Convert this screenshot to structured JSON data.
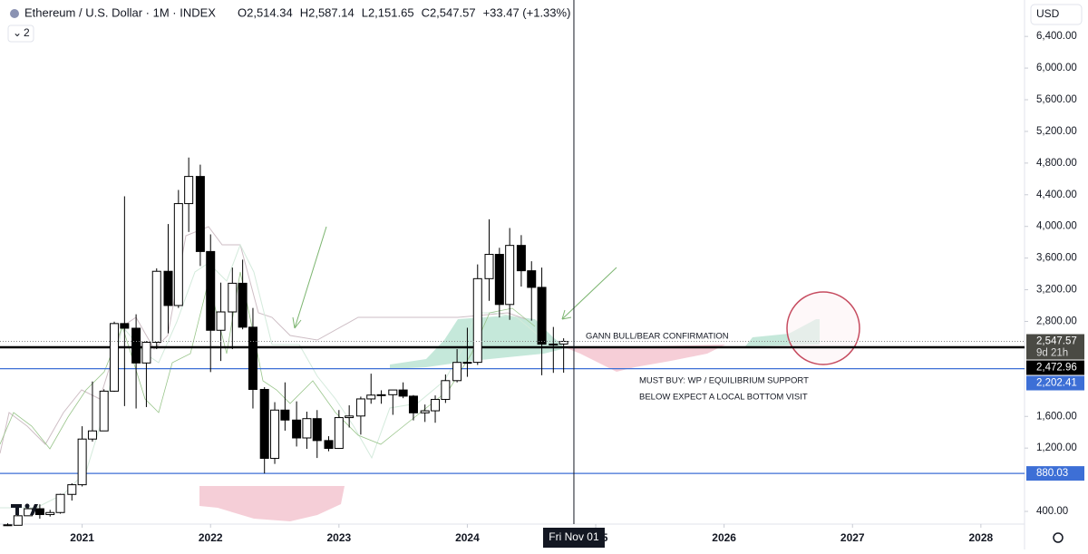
{
  "chart_data": {
    "type": "candlestick",
    "title": "Ethereum / U.S. Dollar · 1M · INDEX",
    "ohlc_labels": [
      "O2,514.34",
      "H2,587.14",
      "L2,151.65",
      "C2,547.57",
      "+33.47 (+1.33%)"
    ],
    "indicator_count": "2",
    "currency": "USD",
    "x": [
      2020.42,
      2020.5,
      2020.58,
      2020.67,
      2020.75,
      2020.83,
      2020.92,
      2021,
      2021.08,
      2021.17,
      2021.25,
      2021.33,
      2021.42,
      2021.5,
      2021.58,
      2021.67,
      2021.75,
      2021.83,
      2021.92,
      2022,
      2022.08,
      2022.17,
      2022.25,
      2022.33,
      2022.42,
      2022.5,
      2022.58,
      2022.67,
      2022.75,
      2022.83,
      2022.92,
      2023,
      2023.08,
      2023.17,
      2023.25,
      2023.33,
      2023.42,
      2023.5,
      2023.58,
      2023.67,
      2023.75,
      2023.83,
      2023.92,
      2024,
      2024.08,
      2024.17,
      2024.25,
      2024.33,
      2024.42,
      2024.5,
      2024.58,
      2024.67,
      2024.75
    ],
    "open": [
      231,
      225,
      345,
      434,
      360,
      386,
      615,
      737,
      1314,
      1417,
      1919,
      2773,
      2714,
      2275,
      2536,
      3433,
      3001,
      4288,
      4631,
      3683,
      2688,
      2920,
      3282,
      2727,
      1941,
      1070,
      1680,
      1554,
      1328,
      1572,
      1295,
      1196,
      1585,
      1605,
      1821,
      1869,
      1874,
      1934,
      1856,
      1645,
      1671,
      1815,
      2052,
      2282,
      2283,
      3340,
      3647,
      3014,
      3760,
      3440,
      3230,
      2513,
      2514.34
    ],
    "high": [
      250,
      415,
      490,
      489,
      420,
      623,
      755,
      1476,
      2041,
      1943,
      2797,
      4380,
      2890,
      2550,
      3470,
      4030,
      4460,
      4870,
      4780,
      3900,
      3290,
      3480,
      3580,
      2970,
      1970,
      1780,
      2030,
      1790,
      1660,
      1680,
      1350,
      1680,
      1740,
      1850,
      2140,
      1930,
      1930,
      2030,
      1870,
      1750,
      1865,
      2130,
      2450,
      2720,
      3520,
      4090,
      3730,
      3980,
      3890,
      3560,
      3480,
      2730,
      2587.14
    ],
    "low": [
      216,
      224,
      344,
      308,
      335,
      371,
      537,
      715,
      1282,
      1440,
      1910,
      1730,
      1700,
      1718,
      2450,
      2650,
      2970,
      3930,
      3500,
      2160,
      2300,
      2450,
      2700,
      1700,
      880,
      1000,
      1420,
      1220,
      1190,
      1075,
      1160,
      1190,
      1460,
      1370,
      1760,
      1760,
      1620,
      1830,
      1550,
      1530,
      1520,
      1770,
      2030,
      2100,
      2250,
      3060,
      2850,
      2820,
      3240,
      2810,
      2120,
      2150,
      2151.65
    ],
    "close": [
      225,
      345,
      434,
      360,
      386,
      615,
      737,
      1314,
      1417,
      1919,
      2773,
      2714,
      2275,
      2536,
      3433,
      3001,
      4288,
      4631,
      3683,
      2688,
      2920,
      3282,
      2727,
      1941,
      1070,
      1680,
      1554,
      1328,
      1572,
      1295,
      1196,
      1585,
      1605,
      1821,
      1869,
      1874,
      1934,
      1856,
      1645,
      1671,
      1815,
      2052,
      2282,
      2283,
      3340,
      3647,
      3014,
      3760,
      3440,
      3230,
      2513,
      2514,
      2547.57
    ],
    "up_color": "#ffffff",
    "down_color": "#000000",
    "xlim": [
      2020.36,
      2028.34
    ],
    "xticks": [
      2021,
      2022,
      2023,
      2024,
      2025,
      2026,
      2027,
      2028
    ],
    "ylim": [
      240,
      6860
    ],
    "yticks": [
      {
        "value": 400,
        "label": "400.00"
      },
      {
        "value": 1200,
        "label": "1,200.00"
      },
      {
        "value": 1600,
        "label": "1,600.00"
      },
      {
        "value": 2800,
        "label": "2,800.00"
      },
      {
        "value": 3200,
        "label": "3,200.00"
      },
      {
        "value": 3600,
        "label": "3,600.00"
      },
      {
        "value": 4000,
        "label": "4,000.00"
      },
      {
        "value": 4400,
        "label": "4,400.00"
      },
      {
        "value": 4800,
        "label": "4,800.00"
      },
      {
        "value": 5200,
        "label": "5,200.00"
      },
      {
        "value": 5600,
        "label": "5,600.00"
      },
      {
        "value": 6000,
        "label": "6,000.00"
      },
      {
        "value": 6400,
        "label": "6,400.00"
      }
    ],
    "grid": false,
    "last_price": {
      "label": "2,547.57",
      "countdown": "9d 21h",
      "color": "#4a4a44"
    },
    "hlines": [
      {
        "value": 2472.96,
        "label": "2,472.96",
        "color": "#000000"
      },
      {
        "value": 2202.41,
        "label": "2,202.41",
        "color": "#3d6fd6"
      },
      {
        "value": 880.03,
        "label": "880.03",
        "color": "#3d6fd6"
      }
    ],
    "crosshair": {
      "x": 2024.83,
      "label": "Fri Nov 01"
    },
    "annotations": [
      {
        "text": "GANN BULL/BEAR CONFIRMATION",
        "color": "#e0506e"
      },
      {
        "text": "MUST BUY: WP / EQUILIBRIUM SUPPORT",
        "color": "#e0506e"
      },
      {
        "text": "BELOW EXPECT A LOCAL BOTTOM VISIT",
        "color": "#e0506e"
      }
    ]
  }
}
